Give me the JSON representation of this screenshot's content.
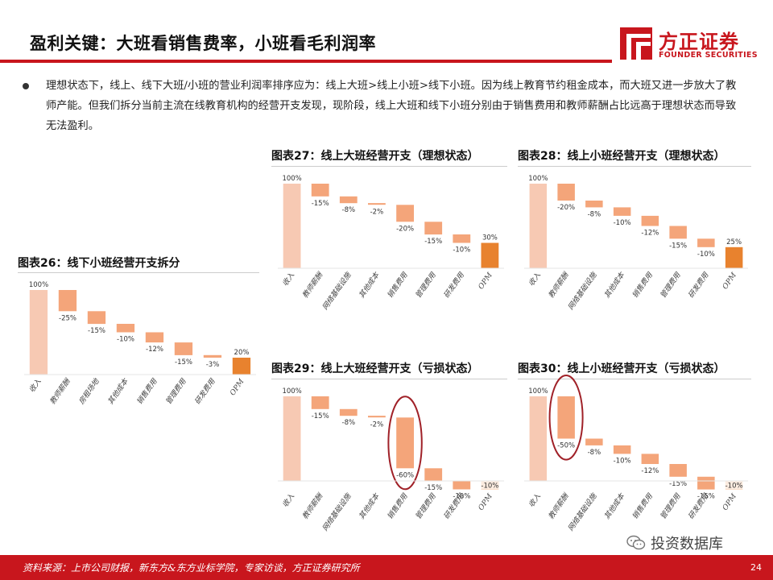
{
  "header": {
    "title": "盈利关键：大班看销售费率，小班看毛利润率",
    "logo_name": "方正证券",
    "logo_en": "FOUNDER SECURITIES"
  },
  "bullet": "理想状态下，线上、线下大班/小班的营业利润率排序应为：线上大班>线上小班>线下小班。因为线上教育节约租金成本，而大班又进一步放大了教师产能。但我们拆分当前主流在线教育机构的经营开支发现，现阶段，线上大班和线下小班分别由于销售费用和教师薪酬占比远高于理想状态而导致无法盈利。",
  "colors": {
    "accent": "#c8161d",
    "revenue": "#f7c9b3",
    "cost": "#f4a57a",
    "opm": "#e8822e",
    "highlight_ring": "#a02128"
  },
  "chart_data": [
    {
      "id": "fig26",
      "title": "图表26：线下小班经营开支拆分",
      "type": "waterfall",
      "categories": [
        "收入",
        "教师薪酬",
        "房租场地",
        "其他成本",
        "销售费用",
        "管理费用",
        "研发费用",
        "OPM"
      ],
      "values": [
        100,
        -25,
        -15,
        -10,
        -12,
        -15,
        -3,
        20
      ],
      "labels": [
        "100%",
        "-25%",
        "-15%",
        "-10%",
        "-12%",
        "-15%",
        "-3%",
        "20%"
      ],
      "ylim": [
        0,
        100
      ]
    },
    {
      "id": "fig27",
      "title": "图表27：线上大班经营开支（理想状态）",
      "type": "waterfall",
      "categories": [
        "收入",
        "教师薪酬",
        "网络基础设施",
        "其他成本",
        "销售费用",
        "管理费用",
        "研发费用",
        "OPM"
      ],
      "values": [
        100,
        -15,
        -8,
        -2,
        -20,
        -15,
        -10,
        30
      ],
      "labels": [
        "100%",
        "-15%",
        "-8%",
        "-2%",
        "-20%",
        "-15%",
        "-10%",
        "30%"
      ],
      "ylim": [
        0,
        100
      ]
    },
    {
      "id": "fig28",
      "title": "图表28：线上小班经营开支（理想状态）",
      "type": "waterfall",
      "categories": [
        "收入",
        "教师薪酬",
        "网络基础设施",
        "其他成本",
        "销售费用",
        "管理费用",
        "研发费用",
        "OPM"
      ],
      "values": [
        100,
        -20,
        -8,
        -10,
        -12,
        -15,
        -10,
        25
      ],
      "labels": [
        "100%",
        "-20%",
        "-8%",
        "-10%",
        "-12%",
        "-15%",
        "-10%",
        "25%"
      ],
      "ylim": [
        0,
        100
      ]
    },
    {
      "id": "fig29",
      "title": "图表29：线上大班经营开支（亏损状态）",
      "type": "waterfall",
      "categories": [
        "收入",
        "教师薪酬",
        "网络基础设施",
        "其他成本",
        "销售费用",
        "管理费用",
        "研发费用",
        "OPM"
      ],
      "values": [
        100,
        -15,
        -8,
        -2,
        -60,
        -15,
        -10,
        -10
      ],
      "labels": [
        "100%",
        "-15%",
        "-8%",
        "-2%",
        "-60%",
        "-15%",
        "-10%",
        "-10%"
      ],
      "highlight": 4,
      "ylim": [
        -10,
        100
      ]
    },
    {
      "id": "fig30",
      "title": "图表30：线上小班经营开支（亏损状态）",
      "type": "waterfall",
      "categories": [
        "收入",
        "教师薪酬",
        "网络基础设施",
        "其他成本",
        "销售费用",
        "管理费用",
        "研发费用",
        "OPM"
      ],
      "values": [
        100,
        -50,
        -8,
        -10,
        -12,
        -15,
        -15,
        -10
      ],
      "labels": [
        "100%",
        "-50%",
        "-8%",
        "-10%",
        "-12%",
        "-15%",
        "-15%",
        "-10%"
      ],
      "highlight": 1,
      "ylim": [
        -10,
        100
      ]
    }
  ],
  "footer": {
    "source": "资料来源：上市公司财报，新东方&东方业标学院，专家访谈，方正证券研究所",
    "page": "24",
    "watermark": "投资数据库"
  }
}
